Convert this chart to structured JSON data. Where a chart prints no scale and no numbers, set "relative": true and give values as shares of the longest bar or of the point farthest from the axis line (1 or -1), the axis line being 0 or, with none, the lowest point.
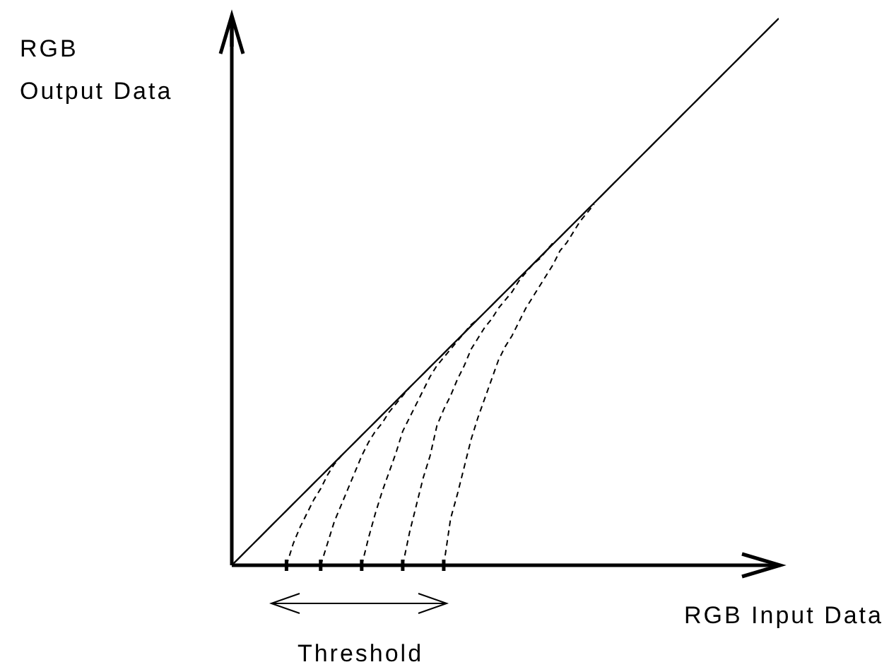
{
  "chart_data": {
    "type": "line",
    "relative": true,
    "xlabel": "RGB Input Data",
    "ylabel": "RGB\nOutput Data",
    "annotations": [
      "Threshold"
    ],
    "marker": "none",
    "categories": [
      null,
      null,
      null,
      null,
      null,
      null,
      null,
      null,
      null,
      null,
      null,
      null,
      null,
      null,
      null,
      null,
      null,
      null,
      null,
      null,
      null,
      null,
      null,
      null,
      null,
      null,
      null,
      null,
      null,
      null,
      null,
      null,
      null,
      null,
      null,
      null,
      null,
      null,
      null,
      null,
      null,
      null,
      null,
      null,
      null,
      null,
      null,
      null,
      null,
      null,
      null,
      null,
      null,
      null,
      null,
      null,
      null,
      null,
      null,
      null,
      null,
      null,
      null,
      null,
      null,
      null,
      null,
      null,
      null,
      null,
      null,
      null,
      null,
      null,
      null,
      null,
      null,
      null,
      null,
      null,
      null
    ],
    "series": [
      {
        "color": "#000000",
        "line_style": "solid",
        "values": [
          0,
          0.0125,
          0.025,
          0.0375,
          0.05,
          0.0625,
          0.075,
          0.0875,
          0.1,
          0.1125,
          0.125,
          0.1375,
          0.15,
          0.1625,
          0.175,
          0.1875,
          0.2,
          0.2125,
          0.225,
          0.2375,
          0.25,
          0.2625,
          0.275,
          0.2875,
          0.3,
          0.3125,
          0.325,
          0.3375,
          0.35,
          0.3625,
          0.375,
          0.3875,
          0.4,
          0.4125,
          0.425,
          0.4375,
          0.45,
          0.4625,
          0.475,
          0.4875,
          0.5,
          0.5125,
          0.525,
          0.5375,
          0.55,
          0.5625,
          0.575,
          0.5875,
          0.6,
          0.6125,
          0.625,
          0.6375,
          0.65,
          0.6625,
          0.675,
          0.6875,
          0.7,
          0.7125,
          0.725,
          0.7375,
          0.75,
          0.7625,
          0.775,
          0.7875,
          0.8,
          0.8125,
          0.825,
          0.8375,
          0.85,
          0.8625,
          0.875,
          0.8875,
          0.9,
          0.9125,
          0.925,
          0.9375,
          0.95,
          0.9625,
          0.975,
          0.9875,
          1
        ]
      },
      {
        "color": "#000000",
        "line_style": "dashed",
        "values": [
          null,
          null,
          null,
          null,
          null,
          null,
          null,
          null,
          0,
          0.04,
          0.07,
          0.095,
          0.12,
          0.14,
          0.165,
          0.185,
          0.2,
          null,
          null,
          null,
          null,
          null,
          null,
          null,
          null,
          null,
          null,
          null,
          null,
          null,
          null,
          null,
          null,
          null,
          null,
          null,
          null,
          null,
          null,
          null,
          null,
          null,
          null,
          null,
          null,
          null,
          null,
          null,
          null,
          null,
          null,
          null,
          null,
          null,
          null,
          null,
          null,
          null,
          null,
          null,
          null,
          null,
          null,
          null,
          null,
          null,
          null,
          null,
          null,
          null,
          null,
          null,
          null,
          null,
          null,
          null,
          null,
          null,
          null,
          null,
          null
        ]
      },
      {
        "color": "#000000",
        "line_style": "dashed",
        "values": [
          null,
          null,
          null,
          null,
          null,
          null,
          null,
          null,
          null,
          null,
          null,
          null,
          null,
          0,
          0.04,
          0.08,
          0.11,
          0.14,
          0.17,
          0.2,
          0.225,
          0.245,
          0.26,
          0.28,
          0.295,
          0.31,
          0.325,
          null,
          null,
          null,
          null,
          null,
          null,
          null,
          null,
          null,
          null,
          null,
          null,
          null,
          null,
          null,
          null,
          null,
          null,
          null,
          null,
          null,
          null,
          null,
          null,
          null,
          null,
          null,
          null,
          null,
          null,
          null,
          null,
          null,
          null,
          null,
          null,
          null,
          null,
          null,
          null,
          null,
          null,
          null,
          null,
          null,
          null,
          null,
          null,
          null,
          null,
          null,
          null,
          null,
          null
        ]
      },
      {
        "color": "#000000",
        "line_style": "dashed",
        "values": [
          null,
          null,
          null,
          null,
          null,
          null,
          null,
          null,
          null,
          null,
          null,
          null,
          null,
          null,
          null,
          null,
          null,
          null,
          null,
          0,
          0.05,
          0.095,
          0.135,
          0.17,
          0.205,
          0.245,
          0.27,
          0.295,
          0.32,
          0.345,
          0.365,
          0.38,
          0.395,
          0.41,
          0.425,
          0.44,
          0.45,
          null,
          null,
          null,
          null,
          null,
          null,
          null,
          null,
          null,
          null,
          null,
          null,
          null,
          null,
          null,
          null,
          null,
          null,
          null,
          null,
          null,
          null,
          null,
          null,
          null,
          null,
          null,
          null,
          null,
          null,
          null,
          null,
          null,
          null,
          null,
          null,
          null,
          null,
          null,
          null,
          null,
          null,
          null,
          null
        ]
      },
      {
        "color": "#000000",
        "line_style": "dashed",
        "values": [
          null,
          null,
          null,
          null,
          null,
          null,
          null,
          null,
          null,
          null,
          null,
          null,
          null,
          null,
          null,
          null,
          null,
          null,
          null,
          null,
          null,
          null,
          null,
          null,
          null,
          0,
          0.06,
          0.11,
          0.16,
          0.2,
          0.255,
          0.285,
          0.31,
          0.34,
          0.365,
          0.395,
          0.415,
          0.435,
          0.45,
          0.47,
          0.485,
          0.5,
          0.52,
          0.535,
          0.55,
          0.56,
          0.575,
          0.59,
          null,
          null,
          null,
          null,
          null,
          null,
          null,
          null,
          null,
          null,
          null,
          null,
          null,
          null,
          null,
          null,
          null,
          null,
          null,
          null,
          null,
          null,
          null,
          null,
          null,
          null,
          null,
          null,
          null,
          null,
          null,
          null,
          null
        ]
      },
      {
        "color": "#000000",
        "line_style": "dashed",
        "values": [
          null,
          null,
          null,
          null,
          null,
          null,
          null,
          null,
          null,
          null,
          null,
          null,
          null,
          null,
          null,
          null,
          null,
          null,
          null,
          null,
          null,
          null,
          null,
          null,
          null,
          null,
          null,
          null,
          null,
          null,
          null,
          0,
          0.085,
          0.13,
          0.18,
          0.23,
          0.27,
          0.305,
          0.34,
          0.375,
          0.4,
          0.42,
          0.445,
          0.47,
          0.49,
          0.51,
          0.53,
          0.55,
          0.575,
          0.59,
          0.61,
          0.63,
          0.645,
          0.66,
          null,
          null,
          null,
          null,
          null,
          null,
          null,
          null,
          null,
          null,
          null,
          null,
          null,
          null,
          null,
          null,
          null,
          null,
          null,
          null,
          null,
          null,
          null,
          null,
          null,
          null,
          null
        ]
      }
    ]
  }
}
